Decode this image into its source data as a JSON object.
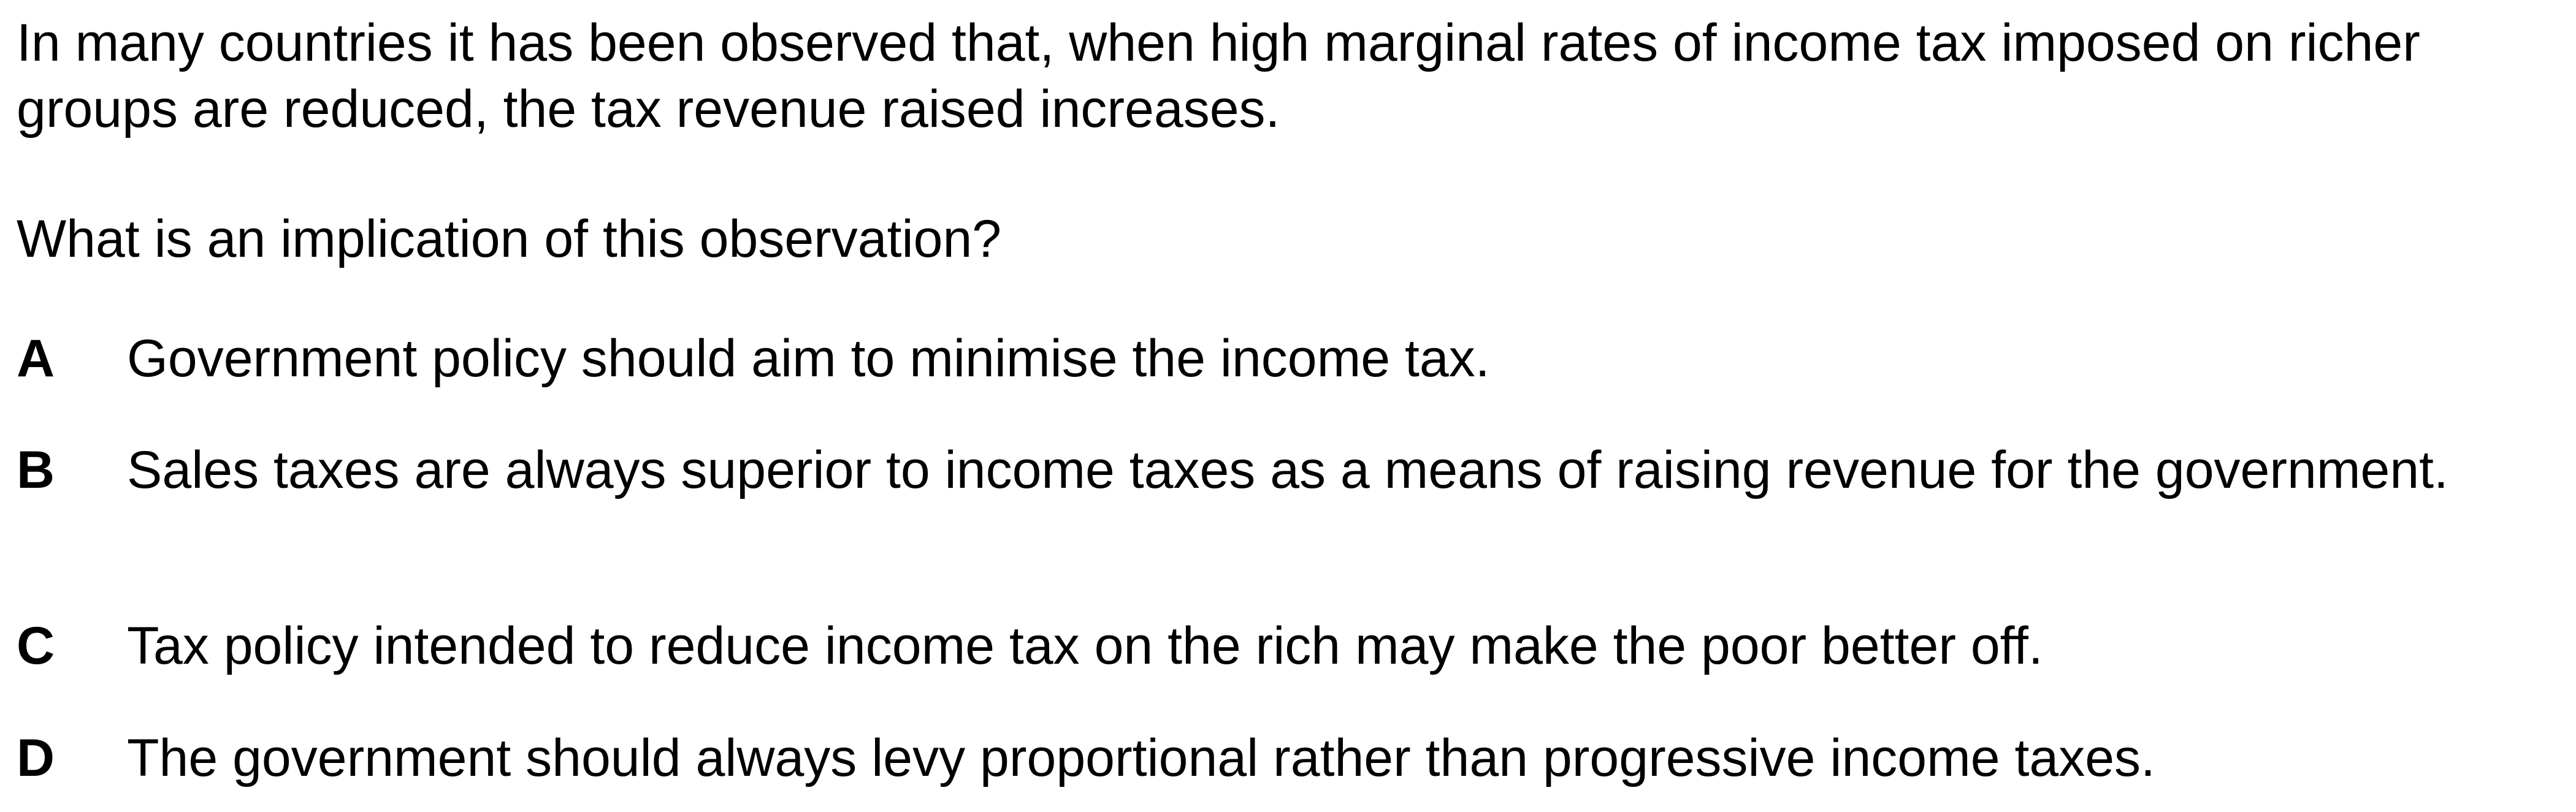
{
  "stem": "In many countries it has been observed that, when high marginal rates of income tax imposed on richer groups are reduced, the tax revenue raised increases.",
  "question": "What is an implication of this observation?",
  "options": [
    {
      "letter": "A",
      "text": "Government policy should aim to minimise the income tax."
    },
    {
      "letter": "B",
      "text": "Sales taxes are always superior to income taxes as a means of raising revenue for the government."
    },
    {
      "letter": "C",
      "text": "Tax policy intended to reduce income tax on the rich may make the poor better off."
    },
    {
      "letter": "D",
      "text": "The government should always levy proportional rather than progressive income taxes."
    }
  ]
}
